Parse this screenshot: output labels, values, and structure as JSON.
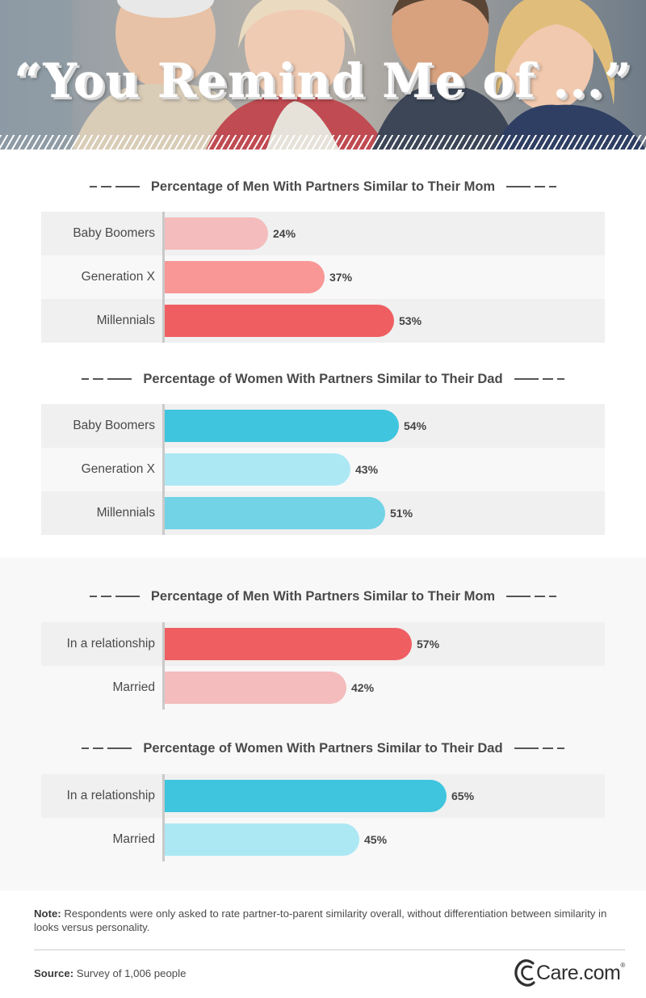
{
  "hero": {
    "title": "“You Remind Me of ...”"
  },
  "chart_data": [
    {
      "type": "bar",
      "title": "Percentage of Men With Partners Similar to Their Mom",
      "categories": [
        "Baby Boomers",
        "Generation X",
        "Millennials"
      ],
      "values": [
        24,
        37,
        53
      ],
      "value_labels": [
        "24%",
        "37%",
        "53%"
      ],
      "colors": [
        "#f4bcbc",
        "#f99797",
        "#ef5f62"
      ],
      "orientation": "horizontal",
      "xlim": [
        0,
        100
      ]
    },
    {
      "type": "bar",
      "title": "Percentage of Women With Partners Similar to Their Dad",
      "categories": [
        "Baby Boomers",
        "Generation X",
        "Millennials"
      ],
      "values": [
        54,
        43,
        51
      ],
      "value_labels": [
        "54%",
        "43%",
        "51%"
      ],
      "colors": [
        "#3fc5de",
        "#ace8f4",
        "#72d3e6"
      ],
      "orientation": "horizontal",
      "xlim": [
        0,
        100
      ]
    },
    {
      "type": "bar",
      "title": "Percentage of Men With Partners Similar to Their Mom",
      "categories": [
        "In a relationship",
        "Married"
      ],
      "values": [
        57,
        42
      ],
      "value_labels": [
        "57%",
        "42%"
      ],
      "colors": [
        "#ef5f62",
        "#f4bcbc"
      ],
      "orientation": "horizontal",
      "xlim": [
        0,
        100
      ]
    },
    {
      "type": "bar",
      "title": "Percentage of Women With Partners Similar to Their Dad",
      "categories": [
        "In a relationship",
        "Married"
      ],
      "values": [
        65,
        45
      ],
      "value_labels": [
        "65%",
        "45%"
      ],
      "colors": [
        "#3fc5de",
        "#ace8f4"
      ],
      "orientation": "horizontal",
      "xlim": [
        0,
        100
      ]
    }
  ],
  "footer": {
    "note_label": "Note:",
    "note_text": " Respondents were only asked to rate partner-to-parent similarity overall, without differentiation between similarity in looks versus personality.",
    "source_label": "Source:",
    "source_text": " Survey of 1,006 people",
    "logo_text": "Care.com",
    "logo_mark": "®"
  }
}
